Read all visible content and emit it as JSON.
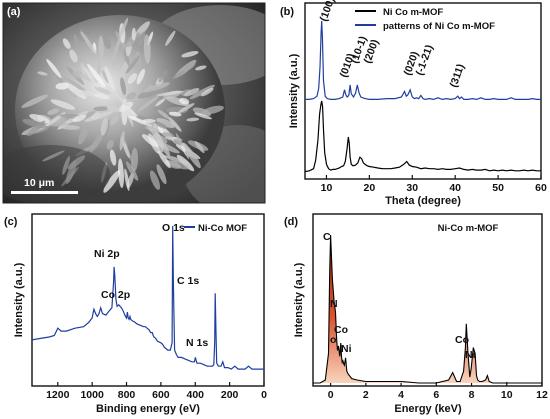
{
  "panels": {
    "a": {
      "label": "(a)",
      "scale_bar": "10 μm"
    },
    "b": {
      "label": "(b)"
    },
    "c": {
      "label": "(c)"
    },
    "d": {
      "label": "(d)"
    }
  },
  "chart_data": [
    {
      "panel": "b",
      "type": "line",
      "xlabel": "Theta (degree)",
      "ylabel": "Intensity (a.u.)",
      "xlim": [
        5,
        60
      ],
      "xticks": [
        10,
        20,
        30,
        40,
        50,
        60
      ],
      "legend_position": "top-right",
      "colors": {
        "Ni Co m-MOF": "#000000",
        "patterns of Ni Co m-MOF": "#1f3fa0"
      },
      "series": [
        {
          "name": "Ni Co m-MOF",
          "x": [
            5,
            6,
            7,
            7.5,
            8,
            8.4,
            8.7,
            8.9,
            9.1,
            9.3,
            9.6,
            10,
            10.5,
            11,
            11.5,
            12,
            12.5,
            13,
            13.5,
            14,
            14.4,
            14.8,
            15.1,
            15.3,
            15.5,
            15.8,
            16.2,
            16.8,
            17.3,
            17.8,
            18.2,
            18.6,
            19,
            19.5,
            20,
            21,
            22,
            23,
            24,
            25,
            26,
            27,
            28,
            28.7,
            29.3,
            30,
            31,
            32,
            33,
            34,
            35,
            36,
            37,
            38,
            39,
            40,
            41,
            42,
            43,
            44,
            45,
            46,
            47,
            48,
            49,
            50,
            51,
            52,
            53,
            54,
            55,
            56,
            57,
            58,
            59,
            60
          ],
          "y": [
            0.02,
            0.03,
            0.06,
            0.18,
            0.45,
            0.82,
            0.95,
            1.0,
            0.92,
            0.6,
            0.28,
            0.12,
            0.06,
            0.04,
            0.05,
            0.05,
            0.06,
            0.07,
            0.09,
            0.1,
            0.16,
            0.34,
            0.5,
            0.42,
            0.22,
            0.12,
            0.1,
            0.11,
            0.14,
            0.22,
            0.2,
            0.14,
            0.12,
            0.1,
            0.09,
            0.08,
            0.07,
            0.06,
            0.06,
            0.06,
            0.07,
            0.08,
            0.12,
            0.16,
            0.11,
            0.09,
            0.08,
            0.06,
            0.07,
            0.06,
            0.06,
            0.05,
            0.06,
            0.05,
            0.05,
            0.06,
            0.07,
            0.05,
            0.04,
            0.05,
            0.04,
            0.04,
            0.05,
            0.03,
            0.04,
            0.03,
            0.04,
            0.03,
            0.04,
            0.03,
            0.03,
            0.04,
            0.03,
            0.04,
            0.03,
            0.03
          ]
        },
        {
          "name": "patterns of Ni Co m-MOF",
          "x": [
            5,
            6,
            7,
            7.8,
            8.2,
            8.5,
            8.75,
            8.9,
            9.05,
            9.3,
            9.7,
            10.2,
            11,
            12,
            13,
            13.8,
            14.2,
            14.5,
            14.8,
            15.2,
            15.5,
            15.8,
            16.3,
            16.8,
            17.2,
            17.6,
            18,
            18.5,
            19,
            20,
            22,
            24,
            26,
            27.5,
            28.2,
            28.6,
            29,
            29.5,
            30,
            30.5,
            31,
            31.5,
            32,
            32.5,
            33,
            34,
            35,
            36,
            37,
            38,
            39,
            40,
            40.6,
            41,
            41.5,
            42,
            43,
            44,
            45,
            46,
            47,
            48,
            49,
            50,
            51,
            52,
            53,
            54,
            55,
            56,
            57,
            58,
            59,
            60
          ],
          "y": [
            0.02,
            0.02,
            0.03,
            0.06,
            0.16,
            0.42,
            0.85,
            1.0,
            0.8,
            0.25,
            0.06,
            0.03,
            0.02,
            0.02,
            0.03,
            0.05,
            0.14,
            0.08,
            0.05,
            0.07,
            0.2,
            0.09,
            0.05,
            0.1,
            0.2,
            0.1,
            0.05,
            0.04,
            0.03,
            0.02,
            0.02,
            0.03,
            0.03,
            0.05,
            0.12,
            0.06,
            0.08,
            0.14,
            0.05,
            0.03,
            0.04,
            0.03,
            0.07,
            0.03,
            0.02,
            0.03,
            0.02,
            0.04,
            0.02,
            0.03,
            0.02,
            0.03,
            0.06,
            0.03,
            0.05,
            0.02,
            0.02,
            0.03,
            0.02,
            0.04,
            0.02,
            0.02,
            0.03,
            0.02,
            0.02,
            0.02,
            0.04,
            0.02,
            0.02,
            0.02,
            0.02,
            0.03,
            0.02,
            0.02
          ]
        }
      ],
      "annotations": [
        {
          "text": "(100)",
          "x": 8.9
        },
        {
          "text": "(010)",
          "x": 14.3
        },
        {
          "text": "(10-1)",
          "x": 15.4
        },
        {
          "text": "(200)",
          "x": 17.2
        },
        {
          "text": "(020)",
          "x": 28.2
        },
        {
          "text": "(-1-21)",
          "x": 29.4
        },
        {
          "text": "(311)",
          "x": 40.6
        }
      ]
    },
    {
      "panel": "c",
      "type": "line",
      "xlabel": "Binding energy (eV)",
      "ylabel": "Intensity (a.u.)",
      "xlim": [
        1350,
        0
      ],
      "xticks": [
        1200,
        1000,
        800,
        600,
        400,
        200,
        0
      ],
      "legend_position": "top-right",
      "colors": {
        "Ni-Co MOF": "#1f3fa0"
      },
      "series": [
        {
          "name": "Ni-Co MOF",
          "x": [
            1350,
            1300,
            1250,
            1220,
            1200,
            1180,
            1150,
            1100,
            1050,
            1020,
            1000,
            990,
            980,
            970,
            960,
            950,
            940,
            920,
            900,
            885,
            875,
            872,
            868,
            862,
            855,
            845,
            830,
            820,
            810,
            800,
            795,
            790,
            785,
            780,
            775,
            765,
            750,
            740,
            720,
            700,
            690,
            680,
            670,
            660,
            650,
            645,
            640,
            630,
            620,
            600,
            590,
            580,
            570,
            560,
            545,
            535,
            531,
            527,
            520,
            510,
            500,
            480,
            460,
            440,
            420,
            405,
            399,
            395,
            390,
            370,
            350,
            330,
            310,
            300,
            292,
            287,
            284,
            280,
            275,
            265,
            250,
            240,
            230,
            210,
            190,
            170,
            150,
            130,
            110,
            90,
            70,
            50,
            30,
            0
          ],
          "y": [
            0.22,
            0.23,
            0.24,
            0.25,
            0.3,
            0.28,
            0.28,
            0.3,
            0.31,
            0.34,
            0.37,
            0.43,
            0.4,
            0.38,
            0.4,
            0.44,
            0.4,
            0.39,
            0.42,
            0.44,
            0.62,
            0.72,
            0.66,
            0.5,
            0.45,
            0.46,
            0.44,
            0.42,
            0.39,
            0.37,
            0.41,
            0.37,
            0.36,
            0.38,
            0.36,
            0.35,
            0.34,
            0.33,
            0.32,
            0.31,
            0.31,
            0.3,
            0.29,
            0.27,
            0.27,
            0.25,
            0.24,
            0.23,
            0.21,
            0.2,
            0.19,
            0.17,
            0.16,
            0.15,
            0.15,
            0.2,
            1.0,
            0.6,
            0.15,
            0.12,
            0.1,
            0.1,
            0.09,
            0.08,
            0.07,
            0.07,
            0.1,
            0.08,
            0.06,
            0.06,
            0.05,
            0.04,
            0.04,
            0.04,
            0.05,
            0.2,
            0.54,
            0.3,
            0.06,
            0.04,
            0.04,
            0.07,
            0.03,
            0.03,
            0.02,
            0.04,
            0.02,
            0.02,
            0.02,
            0.04,
            0.02,
            0.02,
            0.02,
            0.02
          ]
        }
      ],
      "annotations": [
        {
          "text": "O 1s",
          "x": 531
        },
        {
          "text": "Ni 2p",
          "x": 870
        },
        {
          "text": "Co 2p",
          "x": 785
        },
        {
          "text": "C 1s",
          "x": 284
        },
        {
          "text": "N 1s",
          "x": 399
        }
      ]
    },
    {
      "panel": "d",
      "type": "area",
      "title": "Ni-Co m-MOF",
      "xlabel": "Energy (keV)",
      "ylabel": "Intensity (a.u.)",
      "xlim": [
        -1,
        12
      ],
      "xticks": [
        0,
        2,
        4,
        6,
        8,
        10,
        12
      ],
      "colors": {
        "fill_top": "#b23218",
        "fill_bottom": "#f7d0b8",
        "line": "#000000"
      },
      "series": [
        {
          "name": "",
          "x": [
            -1,
            -0.6,
            -0.3,
            -0.12,
            -0.05,
            0.0,
            0.1,
            0.2,
            0.28,
            0.34,
            0.39,
            0.45,
            0.52,
            0.58,
            0.62,
            0.66,
            0.7,
            0.74,
            0.78,
            0.85,
            0.92,
            1.0,
            1.2,
            1.5,
            2,
            3,
            4,
            5,
            6,
            6.7,
            6.93,
            7.15,
            7.35,
            7.55,
            7.65,
            7.7,
            7.8,
            7.9,
            7.98,
            8.1,
            8.2,
            8.28,
            8.35,
            8.45,
            8.6,
            8.8,
            8.9,
            9.0,
            9.2,
            10,
            11,
            12
          ],
          "y": [
            0.0,
            0.0,
            0.02,
            0.2,
            0.75,
            1.0,
            0.7,
            0.55,
            0.48,
            0.3,
            0.22,
            0.25,
            0.18,
            0.27,
            0.18,
            0.14,
            0.15,
            0.13,
            0.12,
            0.17,
            0.08,
            0.06,
            0.03,
            0.02,
            0.01,
            0.01,
            0.01,
            0.0,
            0.0,
            0.02,
            0.07,
            0.01,
            0.01,
            0.08,
            0.24,
            0.4,
            0.2,
            0.04,
            0.1,
            0.24,
            0.2,
            0.05,
            0.02,
            0.01,
            0.01,
            0.02,
            0.05,
            0.01,
            0.0,
            0.0,
            0.0,
            0.0
          ]
        }
      ],
      "annotations": [
        {
          "text": "C",
          "x": 0.0
        },
        {
          "text": "N",
          "x": 0.39
        },
        {
          "text": "Co",
          "x": 0.78
        },
        {
          "text": "o",
          "x": 0.85
        },
        {
          "text": "Ni",
          "x": 0.85
        },
        {
          "text": "Co",
          "x": 6.93
        },
        {
          "text": "Ni",
          "x": 7.48
        }
      ]
    }
  ]
}
